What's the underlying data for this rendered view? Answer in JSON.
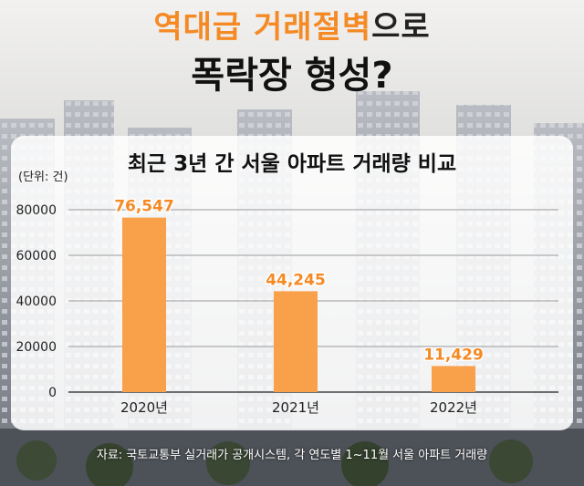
{
  "headline": {
    "line1_orange": "역대급 거래절벽",
    "line1_dark": "으로",
    "line2": "폭락장 형성?"
  },
  "chart_data": {
    "type": "bar",
    "title": "최근 3년 간 서울 아파트 거래량 비교",
    "unit_label": "(단위: 건)",
    "categories": [
      "2020년",
      "2021년",
      "2022년"
    ],
    "values": [
      76547,
      44245,
      11429
    ],
    "value_labels": [
      "76,547",
      "44,245",
      "11,429"
    ],
    "yticks": [
      0,
      20000,
      40000,
      60000,
      80000
    ],
    "ylim": [
      0,
      80000
    ],
    "grid": true,
    "bar_color": "#f9a04b",
    "label_color": "#f58a25"
  },
  "source": "자료: 국토교통부 실거래가 공개시스템, 각 연도별 1~11월 서울 아파트 거래량"
}
